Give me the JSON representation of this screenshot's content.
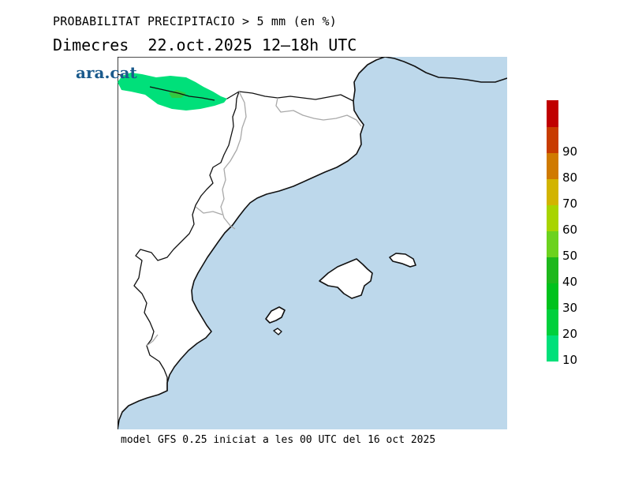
{
  "header": {
    "title": "PROBABILITAT PRECIPITACIO > 5 mm (en %)",
    "subtitle": "Dimecres  22.oct.2025 12–18h UTC"
  },
  "logo": {
    "text": "ara.cat"
  },
  "footer": {
    "text": "model GFS 0.25 iniciat a les 00 UTC del 16 oct 2025"
  },
  "map": {
    "sea_color": "#bdd8eb",
    "land_color": "#ffffff",
    "coast_color": "#111111",
    "border_color": "#a9a9a9",
    "precip_area_color": "#00e07a"
  },
  "legend": {
    "bins": [
      {
        "label": "10",
        "color": "#00e07a"
      },
      {
        "label": "20",
        "color": "#00d03c"
      },
      {
        "label": "30",
        "color": "#00c21c"
      },
      {
        "label": "40",
        "color": "#1eb81c"
      },
      {
        "label": "50",
        "color": "#6cd21e"
      },
      {
        "label": "60",
        "color": "#a8d400"
      },
      {
        "label": "70",
        "color": "#d2b400"
      },
      {
        "label": "80",
        "color": "#d07a00"
      },
      {
        "label": "90",
        "color": "#c83c00"
      },
      {
        "label": "",
        "color": "#c00000"
      }
    ]
  }
}
